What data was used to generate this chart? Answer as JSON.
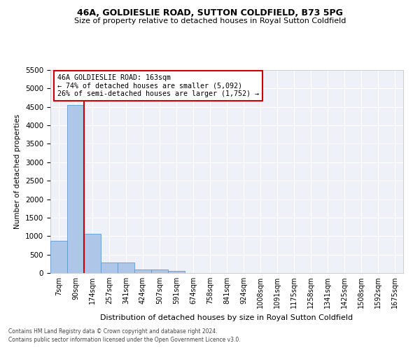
{
  "title1": "46A, GOLDIESLIE ROAD, SUTTON COLDFIELD, B73 5PG",
  "title2": "Size of property relative to detached houses in Royal Sutton Coldfield",
  "xlabel": "Distribution of detached houses by size in Royal Sutton Coldfield",
  "ylabel": "Number of detached properties",
  "annotation_line1": "46A GOLDIESLIE ROAD: 163sqm",
  "annotation_line2": "← 74% of detached houses are smaller (5,092)",
  "annotation_line3": "26% of semi-detached houses are larger (1,752) →",
  "categories": [
    "7sqm",
    "90sqm",
    "174sqm",
    "257sqm",
    "341sqm",
    "424sqm",
    "507sqm",
    "591sqm",
    "674sqm",
    "758sqm",
    "841sqm",
    "924sqm",
    "1008sqm",
    "1091sqm",
    "1175sqm",
    "1258sqm",
    "1341sqm",
    "1425sqm",
    "1508sqm",
    "1592sqm",
    "1675sqm"
  ],
  "values": [
    880,
    4560,
    1060,
    290,
    290,
    90,
    90,
    55,
    0,
    0,
    0,
    0,
    0,
    0,
    0,
    0,
    0,
    0,
    0,
    0,
    0
  ],
  "bar_color": "#aec6e8",
  "bar_edge_color": "#5b9bd5",
  "vline_x_index": 2,
  "vline_color": "#cc0000",
  "ylim": [
    0,
    5500
  ],
  "yticks": [
    0,
    500,
    1000,
    1500,
    2000,
    2500,
    3000,
    3500,
    4000,
    4500,
    5000,
    5500
  ],
  "bg_color": "#eef2f8",
  "grid_color": "#ffffff",
  "annotation_box_color": "#ffffff",
  "annotation_box_edge": "#cc0000",
  "footer1": "Contains HM Land Registry data © Crown copyright and database right 2024.",
  "footer2": "Contains public sector information licensed under the Open Government Licence v3.0."
}
